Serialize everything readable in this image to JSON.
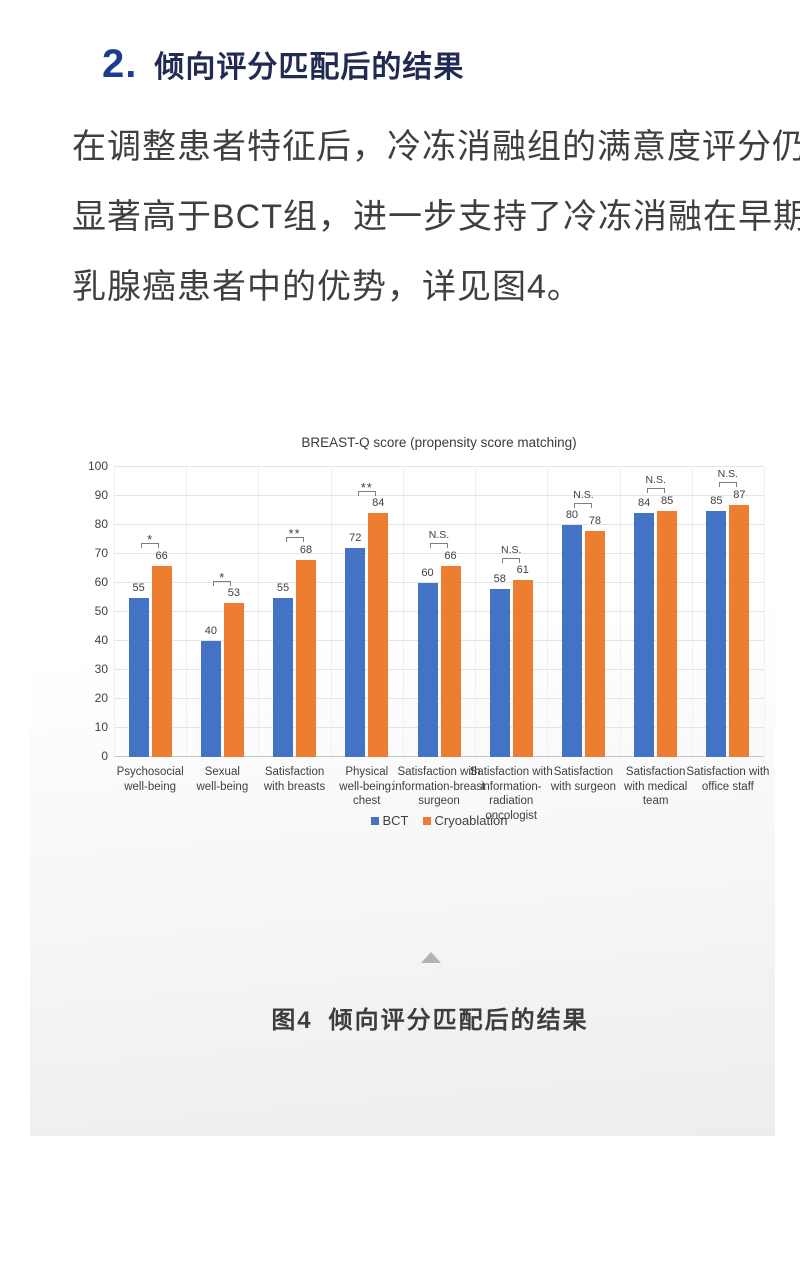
{
  "heading": {
    "number": "2.",
    "title": "倾向评分匹配后的结果"
  },
  "paragraph": {
    "lines": [
      "在调整患者特征后，冷冻消融组的满意度评分仍",
      "显著高于BCT组，进一步支持了冷冻消融在早期",
      "乳腺癌患者中的优势，详见图4。"
    ]
  },
  "chart_data": {
    "type": "bar",
    "title": "BREAST-Q score (propensity score matching)",
    "categories": [
      "Psychosocial\nwell-being",
      "Sexual\nwell-being",
      "Satisfaction\nwith breasts",
      "Physical\nwell-being:\nchest",
      "Satisfaction with\ninformation-breast\nsurgeon",
      "Satisfaction with\ninformation-\nradiation\noncologist",
      "Satisfaction\nwith surgeon",
      "Satisfaction\nwith medical\nteam",
      "Satisfaction with\noffice staff"
    ],
    "series": [
      {
        "name": "BCT",
        "color": "#4472C4",
        "values": [
          55,
          40,
          55,
          72,
          60,
          58,
          80,
          84,
          85
        ]
      },
      {
        "name": "Cryoablation",
        "color": "#ED7D31",
        "values": [
          66,
          53,
          68,
          84,
          66,
          61,
          78,
          85,
          87
        ]
      }
    ],
    "significance": [
      "*",
      "*",
      "**",
      "**",
      "N.S.",
      "N.S.",
      "N.S.",
      "N.S.",
      "N.S."
    ],
    "xlabel": "",
    "ylabel": "",
    "ylim": [
      0,
      100
    ],
    "ytick_step": 10,
    "grid": true,
    "legend_position": "bottom"
  },
  "figure": {
    "caption_prefix": "图4",
    "caption": "倾向评分匹配后的结果",
    "collapse_icon": "up-triangle"
  },
  "colors": {
    "bct": "#4472C4",
    "cryoablation": "#ED7D31",
    "heading_number": "#1d3c8e",
    "heading_title": "#212b52",
    "body_text": "#3f3f3f",
    "card_gradient_end": "#ededed",
    "collapse_arrow": "#b3b3b3"
  }
}
